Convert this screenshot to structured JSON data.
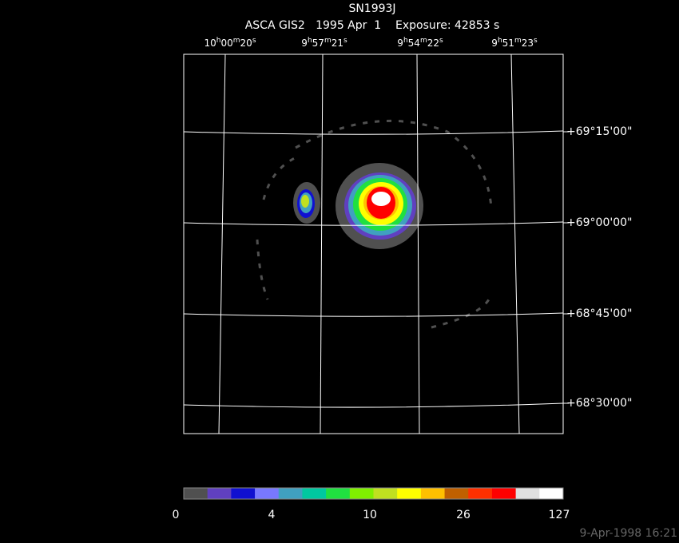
{
  "title": "SN1993J",
  "subtitle": "ASCA GIS2   1995 Apr  1    Exposure: 42853 s",
  "ra_labels": [
    [
      "10",
      "h",
      "00",
      "m",
      "20",
      "s"
    ],
    [
      "9",
      "h",
      "57",
      "m",
      "21",
      "s"
    ],
    [
      "9",
      "h",
      "54",
      "m",
      "22",
      "s"
    ],
    [
      "9",
      "h",
      "51",
      "m",
      "23",
      "s"
    ]
  ],
  "dec_labels": [
    "+69°15'00\"",
    "+69°00'00\"",
    "+68°45'00\"",
    "+68°30'00\""
  ],
  "colorbar": {
    "colors": [
      "#505050",
      "#6040c0",
      "#1010d0",
      "#7878ff",
      "#40a0c0",
      "#00c8a0",
      "#20e040",
      "#80f000",
      "#c0e020",
      "#ffff00",
      "#ffc000",
      "#c06000",
      "#ff3000",
      "#ff0000",
      "#e0e0e0",
      "#ffffff"
    ],
    "ticks": [
      0,
      4,
      10,
      26,
      127
    ]
  },
  "timestamp": "9-Apr-1998 16:21"
}
